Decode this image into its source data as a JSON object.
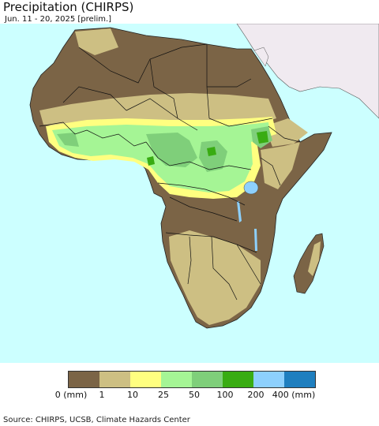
{
  "header": {
    "title": "Precipitation (CHIRPS)",
    "subtitle": "Jun. 11 - 20, 2025 [prelim.]"
  },
  "map": {
    "ocean_color": "#ccffff",
    "outside_land_color": "#f0eaf0"
  },
  "legend": {
    "colors": [
      "#7b6446",
      "#cdbf83",
      "#ffff80",
      "#a5f595",
      "#7fcf7a",
      "#39ac12",
      "#8dd0fd",
      "#1f7fbf"
    ],
    "labels": [
      "0 (mm)",
      "1",
      "10",
      "25",
      "50",
      "100",
      "200",
      "400 (mm)"
    ]
  },
  "footer": {
    "source": "Source: CHIRPS, UCSB, Climate Hazards Center"
  }
}
